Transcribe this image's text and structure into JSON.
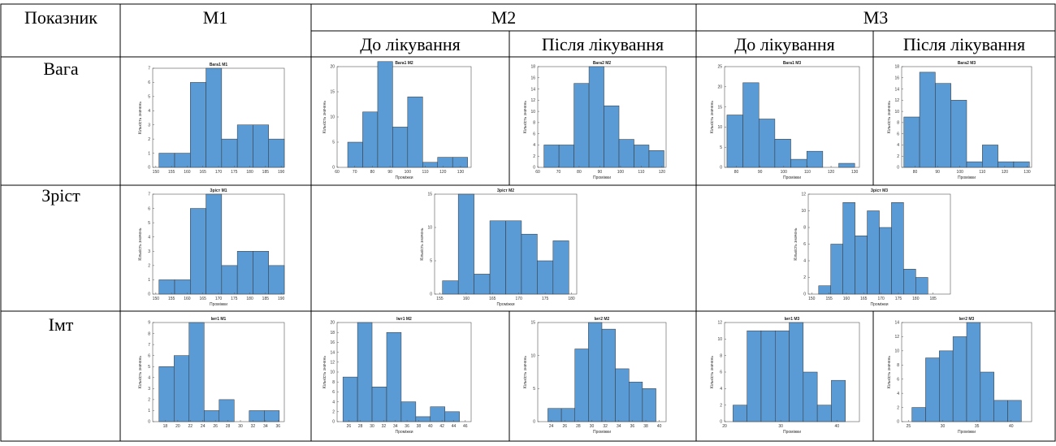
{
  "table": {
    "header": [
      "Показник",
      "М1",
      "М2",
      "М3"
    ],
    "subheader": [
      "До лікування",
      "Після лікування",
      "До лікування",
      "Після лікування"
    ],
    "rows": [
      "Вага",
      "Зріст",
      "Імт"
    ]
  },
  "chart_data": [
    {
      "type": "histogram",
      "title": "Вага1 М1",
      "ylabel": "Кількість значень",
      "color": "#5b9bd5",
      "bins": [
        151,
        156,
        161,
        166,
        171,
        176,
        181,
        186,
        191
      ],
      "counts": [
        1,
        1,
        6,
        7,
        2,
        3,
        3,
        2
      ],
      "xlim": [
        149,
        191
      ],
      "ylim": [
        0,
        7
      ],
      "xticks": [
        150,
        155,
        160,
        165,
        170,
        175,
        180,
        185,
        190
      ],
      "yticks": [
        0,
        1,
        2,
        3,
        4,
        5,
        6,
        7
      ]
    },
    {
      "type": "histogram",
      "title": "Вага1 М2",
      "xlabel": "Проміжки",
      "ylabel": "Кількість значень",
      "color": "#5b9bd5",
      "bins": [
        66,
        74.5,
        83,
        91.5,
        100,
        108.5,
        117,
        125.5,
        134
      ],
      "counts": [
        5,
        11,
        21,
        8,
        14,
        1,
        2,
        2
      ],
      "xlim": [
        60,
        136
      ],
      "ylim": [
        0,
        20
      ],
      "xticks": [
        60,
        70,
        80,
        90,
        100,
        110,
        120,
        130
      ],
      "yticks": [
        0,
        5,
        10,
        15,
        20
      ]
    },
    {
      "type": "histogram",
      "title": "Вага2 М2",
      "xlabel": "Проміжки",
      "ylabel": "Кількість значень",
      "color": "#5b9bd5",
      "bins": [
        63,
        70.25,
        77.5,
        84.75,
        92,
        99.25,
        106.5,
        113.75,
        121
      ],
      "counts": [
        4,
        4,
        15,
        18,
        11,
        5,
        4,
        3
      ],
      "xlim": [
        60,
        122
      ],
      "ylim": [
        0,
        18
      ],
      "xticks": [
        60,
        70,
        80,
        90,
        100,
        110,
        120
      ],
      "yticks": [
        0,
        2,
        4,
        6,
        8,
        10,
        12,
        14,
        16,
        18
      ]
    },
    {
      "type": "histogram",
      "title": "Вага1 М3",
      "xlabel": "Проміжки",
      "ylabel": "Кількість значень",
      "color": "#5b9bd5",
      "bins": [
        76,
        82.75,
        89.5,
        96.25,
        103,
        109.75,
        116.5,
        123.25,
        130
      ],
      "counts": [
        13,
        21,
        12,
        7,
        2,
        4,
        0,
        1
      ],
      "xlim": [
        75,
        132
      ],
      "ylim": [
        0,
        25
      ],
      "xticks": [
        80,
        90,
        100,
        110,
        120,
        130
      ],
      "yticks": [
        0,
        5,
        10,
        15,
        20,
        25
      ]
    },
    {
      "type": "histogram",
      "title": "Вага2 М3",
      "xlabel": "Проміжки",
      "ylabel": "Кількість значень",
      "color": "#5b9bd5",
      "bins": [
        75,
        82,
        89,
        96,
        103,
        110,
        117,
        124,
        131
      ],
      "counts": [
        9,
        17,
        15,
        12,
        1,
        4,
        1,
        1
      ],
      "xlim": [
        74,
        132
      ],
      "ylim": [
        0,
        18
      ],
      "xticks": [
        80,
        90,
        100,
        110,
        120,
        130
      ],
      "yticks": [
        0,
        2,
        4,
        6,
        8,
        10,
        12,
        14,
        16,
        18
      ]
    },
    {
      "type": "histogram",
      "title": "Зріст М1",
      "xlabel": "Проміжки",
      "ylabel": "Кількість значень",
      "color": "#5b9bd5",
      "bins": [
        151,
        156,
        161,
        166,
        171,
        176,
        181,
        186,
        191
      ],
      "counts": [
        1,
        1,
        6,
        7,
        2,
        3,
        3,
        2
      ],
      "xlim": [
        149,
        191
      ],
      "ylim": [
        0,
        7
      ],
      "xticks": [
        150,
        155,
        160,
        165,
        170,
        175,
        180,
        185,
        190
      ],
      "yticks": [
        0,
        1,
        2,
        3,
        4,
        5,
        6,
        7
      ]
    },
    {
      "type": "histogram",
      "title": "Зріст М2",
      "xlabel": "Проміжки",
      "ylabel": "Кількість значень",
      "color": "#5b9bd5",
      "bins": [
        155.5,
        158.5,
        161.5,
        164.5,
        167.5,
        170.5,
        173.5,
        176.5,
        179.5
      ],
      "counts": [
        2,
        15,
        3,
        11,
        11,
        9,
        5,
        8
      ],
      "xlim": [
        154,
        181
      ],
      "ylim": [
        0,
        15
      ],
      "xticks": [
        155,
        160,
        165,
        170,
        175,
        180
      ],
      "yticks": [
        0,
        5,
        10,
        15
      ]
    },
    {
      "type": "histogram",
      "title": "Зріст М3",
      "xlabel": "Проміжки",
      "ylabel": "Кількість значень",
      "color": "#5b9bd5",
      "bins": [
        152,
        155.5,
        159,
        162.5,
        166,
        169.5,
        173,
        176.5,
        180,
        183.5
      ],
      "counts": [
        1,
        6,
        11,
        7,
        10,
        8,
        11,
        3,
        2
      ],
      "xlim": [
        149,
        190
      ],
      "ylim": [
        0,
        12
      ],
      "xticks": [
        150,
        155,
        160,
        165,
        170,
        175,
        180,
        185
      ],
      "yticks": [
        0,
        2,
        4,
        6,
        8,
        10,
        12
      ]
    },
    {
      "type": "histogram",
      "title": "Імт1 М1",
      "ylabel": "Кількість значень",
      "color": "#5b9bd5",
      "bins": [
        17,
        19.4,
        21.8,
        24.2,
        26.6,
        29,
        31.4,
        33.8,
        36.2
      ],
      "counts": [
        5,
        6,
        9,
        1,
        2,
        0,
        1,
        1
      ],
      "xlim": [
        16,
        37
      ],
      "ylim": [
        0,
        9
      ],
      "xticks": [
        18,
        20,
        22,
        24,
        26,
        28,
        30,
        32,
        34,
        36
      ],
      "yticks": [
        0,
        1,
        2,
        3,
        4,
        5,
        6,
        7,
        8,
        9
      ]
    },
    {
      "type": "histogram",
      "title": "Імт1 М2",
      "xlabel": "Проміжки",
      "ylabel": "Кількість значень",
      "color": "#5b9bd5",
      "bins": [
        25,
        27.5,
        30,
        32.5,
        35,
        37.5,
        40,
        42.5,
        45
      ],
      "counts": [
        9,
        20,
        7,
        18,
        4,
        1,
        3,
        2
      ],
      "xlim": [
        24,
        47
      ],
      "ylim": [
        0,
        20
      ],
      "xticks": [
        26,
        28,
        30,
        32,
        34,
        36,
        38,
        40,
        42,
        44,
        46
      ],
      "yticks": [
        0,
        2,
        4,
        6,
        8,
        10,
        12,
        14,
        16,
        18,
        20
      ]
    },
    {
      "type": "histogram",
      "title": "Імт2 М2",
      "xlabel": "Проміжки",
      "ylabel": "Кількість значень",
      "color": "#5b9bd5",
      "bins": [
        23.5,
        25.5,
        27.5,
        29.5,
        31.5,
        33.5,
        35.5,
        37.5,
        39.5
      ],
      "counts": [
        2,
        2,
        11,
        15,
        14,
        8,
        6,
        5
      ],
      "xlim": [
        22,
        41
      ],
      "ylim": [
        0,
        15
      ],
      "xticks": [
        24,
        26,
        28,
        30,
        32,
        34,
        36,
        38,
        40
      ],
      "yticks": [
        0,
        5,
        10,
        15
      ]
    },
    {
      "type": "histogram",
      "title": "Імт1 М3",
      "xlabel": "Проміжки",
      "ylabel": "Кількість значень",
      "color": "#5b9bd5",
      "bins": [
        21.5,
        24,
        26.5,
        29,
        31.5,
        34,
        36.5,
        39,
        41.5
      ],
      "counts": [
        2,
        11,
        11,
        11,
        12,
        6,
        2,
        5
      ],
      "xlim": [
        20,
        44
      ],
      "ylim": [
        0,
        12
      ],
      "xticks": [
        20,
        30,
        40
      ],
      "yticks": [
        0,
        2,
        4,
        6,
        8,
        10,
        12
      ]
    },
    {
      "type": "histogram",
      "title": "Імт2 М3",
      "xlabel": "Проміжки",
      "ylabel": "Кількість значень",
      "color": "#5b9bd5",
      "bins": [
        25.5,
        27.5,
        29.5,
        31.5,
        33.5,
        35.5,
        37.5,
        39.5,
        41.5
      ],
      "counts": [
        2,
        9,
        10,
        12,
        14,
        7,
        3,
        3
      ],
      "xlim": [
        24,
        43
      ],
      "ylim": [
        0,
        14
      ],
      "xticks": [
        25,
        30,
        35,
        40
      ],
      "yticks": [
        0,
        2,
        4,
        6,
        8,
        10,
        12,
        14
      ]
    }
  ]
}
